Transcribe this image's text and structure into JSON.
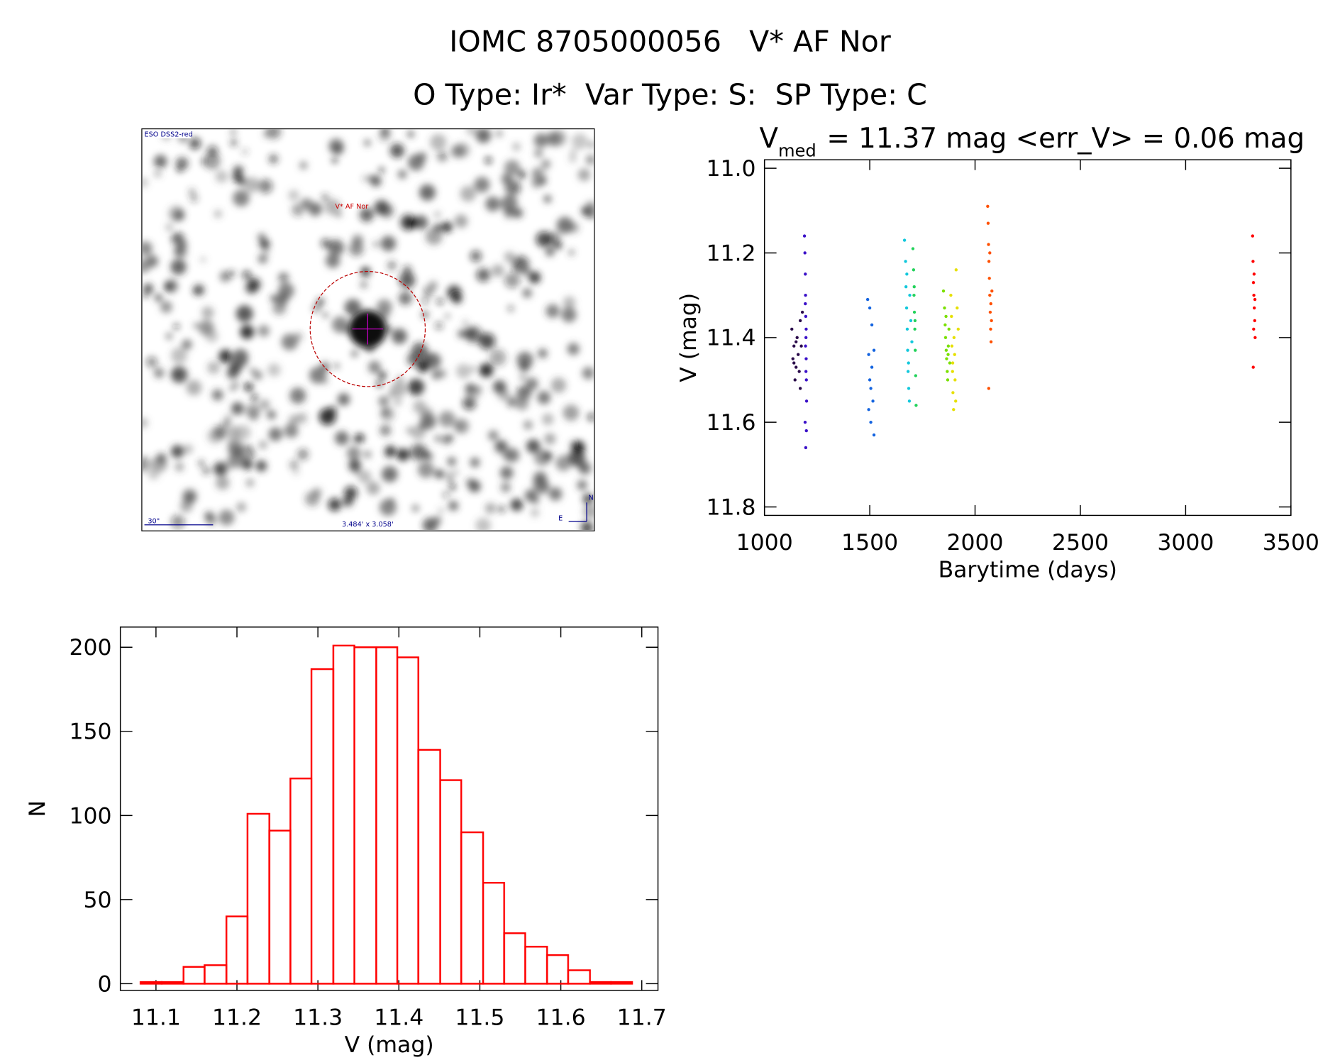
{
  "header": {
    "title": "IOMC 8705000056   V* AF Nor",
    "subtitle": "O Type: Ir*  Var Type: S:  SP Type: C"
  },
  "image": {
    "survey": "ESO DSS2-red",
    "target": "V* AF Nor",
    "scale": "30\"",
    "field": "3.484' x 3.058'",
    "north": "N",
    "east": "E"
  },
  "chart_data": [
    {
      "type": "scatter",
      "title_parts": [
        "V",
        "med",
        "= 11.37 mag <err_V> = 0.06 mag"
      ],
      "x_label": "Barytime (days)",
      "y_label": "V (mag)",
      "xlim": [
        1000,
        3500
      ],
      "xticks": [
        1000,
        1500,
        2000,
        2500,
        3000,
        3500
      ],
      "ylim": [
        11.82,
        10.98
      ],
      "yticks": [
        {
          "value": 11,
          "label": "11.0"
        },
        11.2,
        11.4,
        11.6,
        11.8
      ],
      "series": [
        {
          "color": "#2a0a4a",
          "x": [
            1130,
            1135,
            1140,
            1145,
            1150,
            1155,
            1160,
            1165,
            1170,
            1175,
            1180,
            1170,
            1150,
            1140
          ],
          "values": [
            11.38,
            11.45,
            11.42,
            11.5,
            11.47,
            11.4,
            11.44,
            11.48,
            11.36,
            11.42,
            11.34,
            11.52,
            11.41,
            11.46
          ]
        },
        {
          "color": "#3a10c8",
          "x": [
            1190,
            1192,
            1194,
            1195,
            1196,
            1197,
            1198,
            1199,
            1200,
            1193,
            1196,
            1198,
            1195,
            1197,
            1199,
            1194
          ],
          "values": [
            11.16,
            11.2,
            11.25,
            11.3,
            11.35,
            11.4,
            11.45,
            11.5,
            11.55,
            11.6,
            11.66,
            11.38,
            11.42,
            11.48,
            11.62,
            11.32
          ]
        },
        {
          "color": "#1464e0",
          "x": [
            1490,
            1495,
            1500,
            1505,
            1510,
            1515,
            1520,
            1500,
            1510,
            1520,
            1495,
            1505
          ],
          "values": [
            11.31,
            11.44,
            11.5,
            11.6,
            11.37,
            11.55,
            11.63,
            11.33,
            11.47,
            11.43,
            11.57,
            11.52
          ]
        },
        {
          "color": "#12c8dc",
          "x": [
            1665,
            1670,
            1672,
            1675,
            1678,
            1680,
            1682,
            1685,
            1688,
            1690,
            1695,
            1700,
            1676,
            1684
          ],
          "values": [
            11.17,
            11.22,
            11.28,
            11.33,
            11.38,
            11.43,
            11.48,
            11.52,
            11.55,
            11.3,
            11.36,
            11.41,
            11.25,
            11.46
          ]
        },
        {
          "color": "#22d25a",
          "x": [
            1705,
            1708,
            1710,
            1712,
            1714,
            1716,
            1718,
            1720,
            1711,
            1715
          ],
          "values": [
            11.19,
            11.24,
            11.3,
            11.34,
            11.38,
            11.43,
            11.49,
            11.56,
            11.28,
            11.36
          ]
        },
        {
          "color": "#7ae000",
          "x": [
            1850,
            1855,
            1858,
            1860,
            1863,
            1865,
            1868,
            1870,
            1873,
            1876,
            1880,
            1862,
            1872
          ],
          "values": [
            11.29,
            11.33,
            11.37,
            11.4,
            11.43,
            11.45,
            11.48,
            11.5,
            11.42,
            11.38,
            11.46,
            11.35,
            11.44
          ]
        },
        {
          "color": "#e6e000",
          "x": [
            1885,
            1888,
            1890,
            1893,
            1895,
            1898,
            1900,
            1903,
            1905,
            1910,
            1915,
            1920,
            1894,
            1908
          ],
          "values": [
            11.3,
            11.35,
            11.42,
            11.48,
            11.53,
            11.57,
            11.4,
            11.44,
            11.5,
            11.24,
            11.33,
            11.38,
            11.46,
            11.55
          ]
        },
        {
          "color": "#ff5000",
          "x": [
            2060,
            2062,
            2064,
            2066,
            2068,
            2070,
            2072,
            2074,
            2076,
            2078,
            2080,
            2065,
            2070,
            2075
          ],
          "values": [
            11.09,
            11.13,
            11.18,
            11.22,
            11.26,
            11.3,
            11.34,
            11.38,
            11.41,
            11.36,
            11.29,
            11.52,
            11.2,
            11.32
          ]
        },
        {
          "color": "#ff0000",
          "x": [
            3318,
            3320,
            3322,
            3324,
            3326,
            3328,
            3330,
            3321,
            3325,
            3329,
            3323
          ],
          "values": [
            11.16,
            11.22,
            11.27,
            11.3,
            11.33,
            11.36,
            11.4,
            11.47,
            11.25,
            11.31,
            11.38
          ]
        }
      ]
    },
    {
      "type": "histogram",
      "x_label": "V (mag)",
      "y_label": "N",
      "color": "#ff0000",
      "bins": [
        11.081,
        11.107,
        11.134,
        11.16,
        11.187,
        11.213,
        11.24,
        11.266,
        11.292,
        11.319,
        11.345,
        11.372,
        11.398,
        11.424,
        11.451,
        11.477,
        11.504,
        11.53,
        11.556,
        11.583,
        11.609,
        11.636,
        11.662,
        11.688
      ],
      "values": [
        1,
        1,
        10,
        11,
        40,
        101,
        91,
        122,
        187,
        201,
        200,
        200,
        194,
        139,
        121,
        90,
        60,
        30,
        22,
        17,
        8,
        1,
        1
      ],
      "xlim": [
        11.056,
        11.72
      ],
      "xticks": [
        11.1,
        11.2,
        11.3,
        11.4,
        11.5,
        11.6,
        11.7
      ],
      "ylim": [
        -4,
        212
      ],
      "yticks": [
        0,
        50,
        100,
        150,
        200
      ]
    }
  ]
}
